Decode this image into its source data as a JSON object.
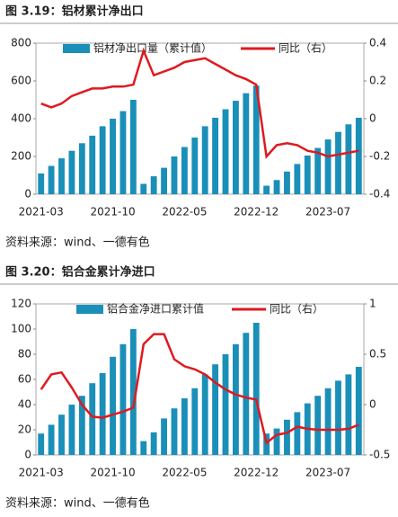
{
  "chart_data": [
    {
      "type": "bar-line",
      "title": "图 3.19：铝材累计净出口",
      "source": "资料来源：wind、一德有色",
      "categories": [
        "2021-03",
        null,
        null,
        null,
        null,
        null,
        null,
        "2021-10",
        null,
        null,
        null,
        null,
        null,
        null,
        "2022-05",
        null,
        null,
        null,
        null,
        null,
        null,
        "2022-12",
        null,
        null,
        null,
        null,
        null,
        null,
        "2023-07",
        null,
        null,
        null
      ],
      "series": [
        {
          "name": "铝材净出口量（累计值）",
          "color": "#1a8fb8",
          "kind": "bar",
          "values": [
            110,
            150,
            190,
            230,
            270,
            310,
            360,
            400,
            440,
            500,
            55,
            95,
            140,
            200,
            250,
            300,
            360,
            405,
            450,
            495,
            535,
            575,
            45,
            75,
            120,
            160,
            205,
            245,
            290,
            330,
            370,
            405
          ]
        },
        {
          "name": "同比（右）",
          "color": "#e0191e",
          "kind": "line",
          "axis": "y2",
          "values": [
            0.08,
            0.06,
            0.08,
            0.12,
            0.14,
            0.16,
            0.16,
            0.17,
            0.17,
            0.18,
            0.36,
            0.23,
            0.25,
            0.27,
            0.3,
            0.31,
            0.32,
            0.29,
            0.26,
            0.23,
            0.21,
            0.18,
            -0.2,
            -0.14,
            -0.13,
            -0.14,
            -0.17,
            -0.18,
            -0.2,
            -0.19,
            -0.18,
            -0.17
          ]
        }
      ],
      "ylim": [
        0,
        800
      ],
      "yticks": [
        0,
        200,
        400,
        600,
        800
      ],
      "y2lim": [
        -0.4,
        0.4
      ],
      "y2ticks": [
        -0.4,
        -0.2,
        0,
        0.2,
        0.4
      ],
      "grid": false
    },
    {
      "type": "bar-line",
      "title": "图 3.20：铝合金累计净进口",
      "source": "资料来源：wind、一德有色",
      "categories": [
        "2021-03",
        null,
        null,
        null,
        null,
        null,
        null,
        "2021-10",
        null,
        null,
        null,
        null,
        null,
        null,
        "2022-05",
        null,
        null,
        null,
        null,
        null,
        null,
        "2022-12",
        null,
        null,
        null,
        null,
        null,
        null,
        "2023-07",
        null,
        null,
        null
      ],
      "series": [
        {
          "name": "铝合金净进口累计值",
          "color": "#1a8fb8",
          "kind": "bar",
          "values": [
            17,
            24,
            32,
            40,
            47,
            57,
            65,
            78,
            88,
            100,
            11,
            18,
            29,
            37,
            45,
            53,
            64,
            72,
            80,
            88,
            97,
            105,
            17,
            21,
            28,
            34,
            41,
            47,
            53,
            59,
            64,
            70
          ]
        },
        {
          "name": "同比（右）",
          "color": "#e0191e",
          "kind": "line",
          "axis": "y2",
          "values": [
            0.15,
            0.3,
            0.32,
            0.17,
            0.0,
            -0.12,
            -0.13,
            -0.1,
            -0.07,
            -0.03,
            0.6,
            0.7,
            0.7,
            0.45,
            0.38,
            0.35,
            0.3,
            0.22,
            0.15,
            0.1,
            0.07,
            0.05,
            -0.38,
            -0.3,
            -0.28,
            -0.22,
            -0.24,
            -0.25,
            -0.25,
            -0.25,
            -0.24,
            -0.2
          ]
        }
      ],
      "ylim": [
        0,
        120
      ],
      "yticks": [
        0,
        20,
        40,
        60,
        80,
        100,
        120
      ],
      "y2lim": [
        -0.5,
        1
      ],
      "y2ticks": [
        -0.5,
        0,
        0.5,
        1
      ],
      "grid": false
    }
  ]
}
